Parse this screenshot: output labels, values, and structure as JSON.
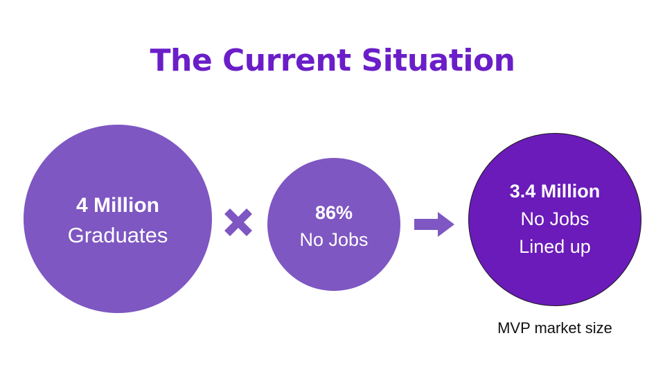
{
  "title": "The Current Situation",
  "colors": {
    "title": "#6a1ec8",
    "circle_light": "#7e57c2",
    "circle_dark": "#6a1bb9",
    "text_on_circle": "#ffffff",
    "caption": "#111111"
  },
  "circles": [
    {
      "line1": "4 Million",
      "line2": "Graduates",
      "line3": ""
    },
    {
      "line1": "86%",
      "line2": "No Jobs",
      "line3": ""
    },
    {
      "line1": "3.4 Million",
      "line2": "No Jobs",
      "line3": "Lined up"
    }
  ],
  "operators": {
    "multiply_icon": "times-icon",
    "result_icon": "arrow-right-icon"
  },
  "caption": "MVP market size"
}
